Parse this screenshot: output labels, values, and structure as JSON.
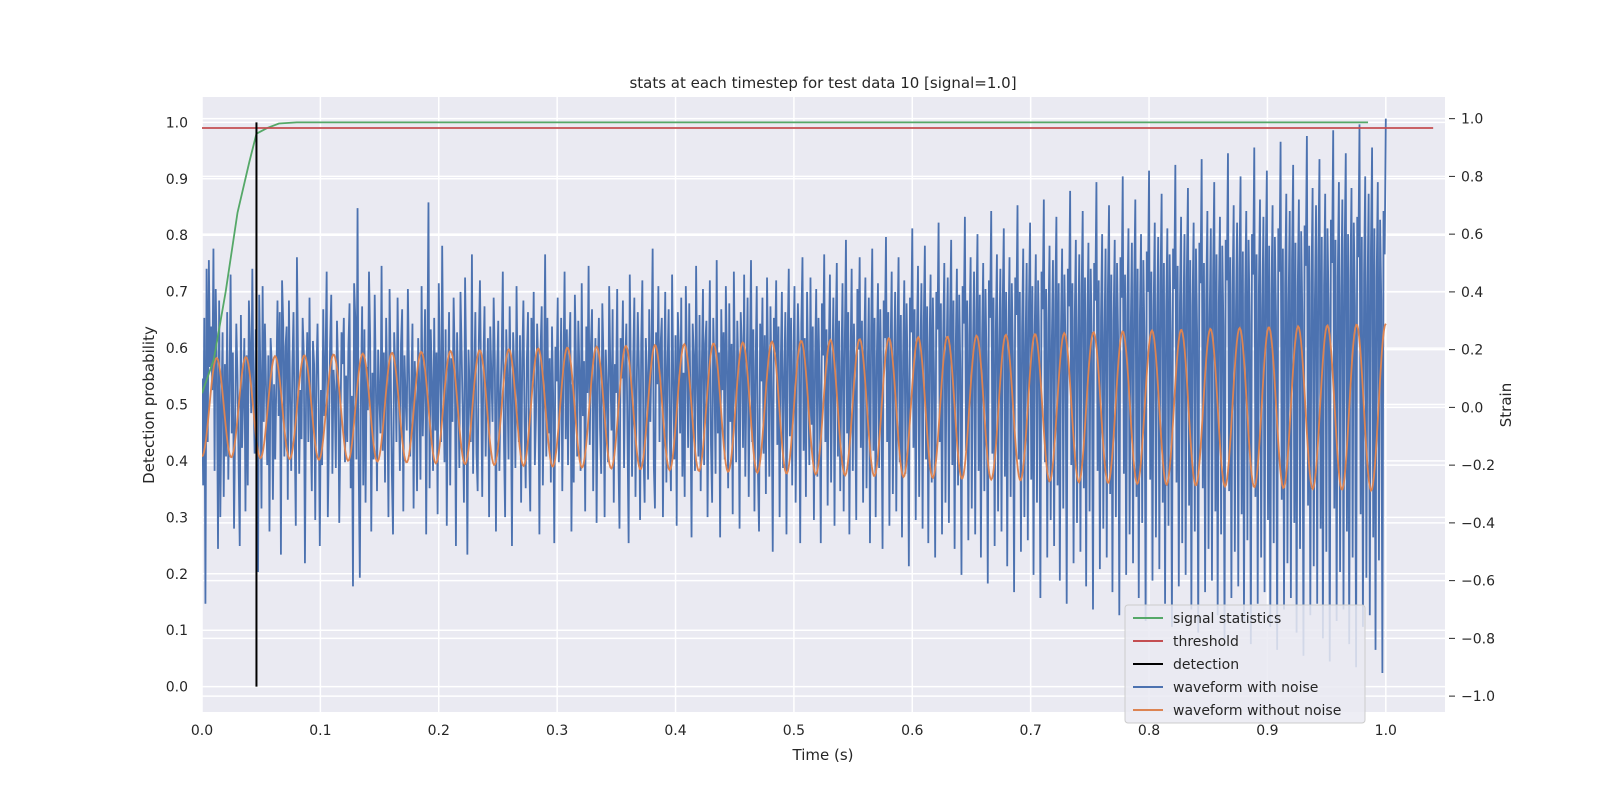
{
  "chart_data": {
    "type": "line",
    "title": "stats at each timestep for test data 10 [signal=1.0]",
    "xlabel": "Time (s)",
    "ylabel": "Detection probability",
    "y2label": "Strain",
    "xlim": [
      0.0,
      1.05
    ],
    "ylim": [
      -0.045,
      1.045
    ],
    "y2lim": [
      -1.055,
      1.075
    ],
    "xticks": [
      "0.0",
      "0.1",
      "0.2",
      "0.3",
      "0.4",
      "0.5",
      "0.6",
      "0.7",
      "0.8",
      "0.9",
      "1.0"
    ],
    "yticks": [
      "0.0",
      "0.1",
      "0.2",
      "0.3",
      "0.4",
      "0.5",
      "0.6",
      "0.7",
      "0.8",
      "0.9",
      "1.0"
    ],
    "y2ticks": [
      "−1.0",
      "−0.8",
      "−0.6",
      "−0.4",
      "−0.2",
      "0.0",
      "0.2",
      "0.4",
      "0.6",
      "0.8",
      "1.0"
    ],
    "grid": true,
    "legend_position": "lower-right",
    "series": [
      {
        "name": "signal statistics",
        "axis": "left",
        "color": "#55a868",
        "x": [
          0.0,
          0.01,
          0.02,
          0.03,
          0.04,
          0.046,
          0.055,
          0.065,
          0.08,
          0.1,
          0.2,
          0.5,
          0.985
        ],
        "y": [
          0.52,
          0.58,
          0.7,
          0.84,
          0.93,
          0.98,
          0.99,
          0.998,
          1.0,
          1.0,
          1.0,
          1.0,
          1.0
        ]
      },
      {
        "name": "threshold",
        "axis": "left",
        "color": "#c44e52",
        "x": [
          0.0,
          1.04
        ],
        "y": [
          0.99,
          0.99
        ]
      },
      {
        "name": "detection",
        "axis": "left",
        "color": "#000000",
        "x": [
          0.046,
          0.046
        ],
        "y": [
          0.0,
          1.0
        ]
      },
      {
        "name": "waveform with noise",
        "axis": "right",
        "color": "#4c72b0",
        "x_range": [
          0.0,
          1.0
        ],
        "y": [
          0.1,
          -0.27,
          0.31,
          -0.68,
          0.48,
          -0.12,
          0.51,
          0.14,
          0.28,
          0.06,
          0.55,
          -0.22,
          0.41,
          0.12,
          -0.49,
          0.37,
          -0.38,
          -0.01,
          0.26,
          -0.31,
          0.15,
          -0.17,
          0.33,
          -0.25,
          0.06,
          0.46,
          -0.09,
          0.19,
          -0.42,
          -0.05,
          0.29,
          0.11,
          -0.19,
          -0.48,
          0.32,
          -0.14,
          0.03,
          0.24,
          -0.36,
          0.18,
          -0.27,
          0.37,
          0.21,
          -0.02,
          0.48,
          0.06,
          -0.16,
          0.27,
          -0.28,
          -0.57,
          0.39,
          0.13,
          -0.35,
          0.42,
          -0.05,
          0.29,
          0.07,
          -0.2,
          0.18,
          -0.43,
          0.24,
          0.15,
          -0.32,
          0.08,
          -0.18,
          0.09,
          0.37,
          -0.03,
          0.33,
          -0.51,
          0.44,
          0.29,
          -0.17,
          0.21,
          0.28,
          -0.32,
          0.37,
          0.04,
          -0.22,
          0.14,
          0.33,
          -0.08,
          -0.41,
          0.52,
          0.16,
          -0.23,
          0.06,
          -0.11,
          0.31,
          0.18,
          -0.54,
          0.05,
          0.26,
          -0.12,
          0.38,
          -0.07,
          -0.29,
          0.23,
          0.15,
          -0.39,
          0.11,
          0.29,
          0.02,
          -0.48,
          0.06,
          -0.2,
          0.34,
          -0.03,
          0.17,
          0.47,
          -0.38,
          -0.11,
          0.22,
          0.39,
          -0.23,
          0.13,
          0.05,
          -0.21,
          0.3,
          0.14,
          -0.4,
          -0.08,
          0.26,
          0.15,
          0.31,
          -0.19,
          0.11,
          -0.12,
          0.21,
          0.36,
          -0.28,
          0.04,
          -0.62,
          0.43,
          0.31,
          -0.18,
          0.69,
          -0.21,
          -0.59,
          0.08,
          0.35,
          -0.27,
          0.27,
          -0.33,
          0.14,
          -0.01,
          0.47,
          0.24,
          -0.43,
          0.12,
          -0.18,
          0.39,
          0.08,
          -0.29,
          0.2,
          0.04,
          -0.09,
          0.49,
          -0.15,
          0.19,
          -0.26,
          0.31,
          0.07,
          -0.38,
          0.41,
          0.12,
          -0.23,
          -0.44,
          0.26,
          0.13,
          -0.12,
          0.38,
          0.07,
          -0.22,
          0.22,
          0.34,
          -0.36,
          0.18,
          0.03,
          -0.08,
          0.41,
          0.12,
          -0.17,
          0.06,
          0.29,
          -0.35,
          0.16,
          0.02,
          -0.29,
          0.24,
          0.07,
          -0.25,
          0.42,
          -0.1,
          0.09,
          0.34,
          -0.44,
          0.15,
          0.71,
          -0.28,
          0.27,
          0.09,
          -0.22,
          0.31,
          -0.08,
          0.19,
          -0.37,
          0.43,
          0.13,
          -0.12,
          0.56,
          0.11,
          -0.19,
          0.27,
          -0.41,
          0.06,
          0.33,
          -0.27,
          0.17,
          -0.05,
          0.38,
          0.16,
          -0.48,
          0.26,
          0.08,
          -0.21,
          0.4,
          0.19,
          -0.03,
          -0.33,
          0.45,
          0.14,
          -0.51,
          0.2,
          0.06,
          -0.12,
          0.53,
          -0.23,
          0.09,
          0.33,
          -0.16,
          -0.29,
          0.22,
          0.44,
          0.1,
          -0.31,
          0.15,
          0.35,
          -0.17,
          0.07,
          0.24,
          -0.38,
          0.28,
          0.11,
          -0.05,
          0.38,
          0.16,
          -0.43,
          0.11,
          0.3,
          -0.22,
          0.04,
          0.18,
          0.47,
          -0.12,
          -0.38,
          0.27,
          0.1,
          -0.18,
          0.35,
          0.05,
          -0.48,
          0.26,
          0.13,
          -0.21,
          0.42,
          0.07,
          -0.12,
          0.25,
          -0.33,
          0.17,
          0.37,
          -0.05,
          -0.28,
          0.16,
          0.33,
          -0.15,
          -0.36,
          0.31,
          0.09,
          0.4,
          -0.2,
          -0.03,
          0.29,
          0.14,
          -0.44,
          0.2,
          0.35,
          -0.27,
          0.08,
          0.53,
          -0.17,
          0.31,
          -0.09,
          0.17,
          -0.26,
          0.28,
          0.04,
          -0.47,
          0.21,
          0.09,
          0.38,
          -0.19,
          0.04,
          0.31,
          -0.29,
          0.13,
          0.47,
          -0.11,
          0.27,
          -0.2,
          0.19,
          0.33,
          -0.43,
          0.08,
          -0.26,
          0.39,
          0.16,
          -0.17,
          0.3,
          0.12,
          -0.22,
          0.43,
          -0.03,
          0.16,
          -0.36,
          0.28,
          0.05,
          0.49,
          -0.13,
          0.21,
          0.34,
          -0.29,
          0.09,
          0.24,
          -0.4,
          0.12,
          0.31,
          -0.07,
          -0.23,
          0.36,
          0.17,
          -0.38,
          0.2,
          0.06,
          -0.19,
          0.42,
          0.13,
          -0.08,
          0.34,
          -0.33,
          0.15,
          0.05,
          0.41,
          -0.15,
          -0.42,
          0.24,
          0.1,
          0.37,
          -0.21,
          0.14,
          0.29,
          -0.1,
          -0.47,
          0.46,
          0.09,
          -0.24,
          0.16,
          0.38,
          -0.31,
          0.05,
          0.33,
          0.13,
          -0.39,
          0.22,
          0.44,
          -0.16,
          -0.33,
          0.24,
          0.12,
          -0.25,
          0.34,
          -0.05,
          0.19,
          0.55,
          -0.2,
          -0.35,
          0.26,
          0.08,
          0.42,
          -0.12,
          0.22,
          0.31,
          -0.38,
          0.07,
          0.4,
          -0.26,
          0.14,
          0.34,
          -0.11,
          -0.29,
          0.46,
          0.1,
          -0.18,
          0.25,
          -0.41,
          0.33,
          0.2,
          -0.09,
          0.38,
          -0.24,
          0.12,
          -0.31,
          0.42,
          0.16,
          -0.14,
          0.36,
          0.04,
          -0.45,
          0.29,
          0.18,
          -0.22,
          0.49,
          0.08,
          -0.17,
          0.32,
          -0.29,
          0.14,
          0.41,
          -0.2,
          0.22,
          0.3,
          -0.38,
          0.09,
          0.44,
          -0.13,
          -0.33,
          0.31,
          0.12,
          -0.23,
          0.51,
          -0.09,
          0.19,
          -0.45,
          0.34,
          0.06,
          0.26,
          -0.18,
          0.42,
          0.15,
          -0.28,
          0.36,
          -0.05,
          0.22,
          -0.37,
          0.47,
          0.1,
          -0.19,
          0.3,
          0.12,
          -0.42,
          0.33,
          0.21,
          -0.14,
          0.46,
          -0.24,
          0.08,
          0.38,
          -0.31,
          0.16,
          0.51,
          -0.12,
          0.27,
          -0.36,
          0.14,
          0.42,
          -0.21,
          -0.43,
          0.29,
          0.09,
          0.38,
          -0.16,
          0.25,
          -0.3,
          0.45,
          0.12,
          -0.24,
          0.35,
          0.06,
          -0.5,
          0.31,
          0.19,
          0.44,
          -0.13,
          0.28,
          -0.38,
          0.15,
          0.4,
          -0.21,
          0.09,
          0.33,
          -0.44,
          0.22,
          0.48,
          -0.1,
          0.31,
          -0.27,
          0.14,
          0.42,
          -0.33,
          0.07,
          0.36,
          0.17,
          -0.47,
          0.29,
          0.52,
          -0.15,
          0.24,
          -0.31,
          0.4,
          0.11,
          -0.2,
          0.45,
          -0.06,
          0.28,
          -0.39,
          0.16,
          0.41,
          -0.24,
          0.31,
          0.08,
          -0.47,
          0.36,
          0.18,
          0.53,
          -0.12,
          0.27,
          -0.34,
          0.19,
          0.46,
          -0.26,
          0.1,
          0.38,
          -0.41,
          0.24,
          0.5,
          -0.17,
          0.3,
          -0.29,
          0.13,
          0.43,
          -0.36,
          0.22,
          0.58,
          -0.09,
          0.33,
          -0.44,
          0.16,
          0.48,
          -0.22,
          0.29,
          0.05,
          -0.39,
          0.41,
          0.2,
          0.52,
          -0.14,
          0.3,
          -0.33,
          0.21,
          0.45,
          -0.28,
          0.12,
          0.38,
          -0.47,
          0.26,
          0.55,
          -0.15,
          0.31,
          -0.38,
          0.17,
          0.43,
          -0.21,
          0.34,
          0.06,
          -0.49,
          0.37,
          0.24,
          0.59,
          -0.12,
          0.33,
          -0.41,
          0.2,
          0.47,
          -0.3,
          0.14,
          0.4,
          -0.36,
          0.25,
          0.52,
          -0.19,
          0.32,
          -0.45,
          0.18,
          0.44,
          -0.23,
          0.36,
          0.09,
          -0.55,
          0.38,
          0.26,
          0.62,
          -0.14,
          0.34,
          -0.39,
          0.22,
          0.49,
          -0.31,
          0.16,
          0.43,
          -0.42,
          0.28,
          0.56,
          -0.18,
          0.35,
          -0.47,
          0.2,
          0.46,
          -0.26,
          0.38,
          0.11,
          -0.52,
          0.4,
          0.27,
          0.64,
          -0.12,
          0.36,
          -0.44,
          0.23,
          0.5,
          -0.33,
          0.17,
          0.45,
          -0.4,
          0.3,
          0.58,
          -0.2,
          0.37,
          -0.49,
          0.21,
          0.48,
          -0.27,
          0.39,
          0.13,
          -0.58,
          0.42,
          0.29,
          0.66,
          -0.15,
          0.37,
          -0.46,
          0.25,
          0.52,
          -0.35,
          0.19,
          0.47,
          -0.44,
          0.32,
          0.6,
          -0.22,
          0.39,
          -0.52,
          0.23,
          0.5,
          -0.29,
          0.41,
          0.14,
          -0.61,
          0.44,
          0.31,
          0.68,
          -0.16,
          0.38,
          -0.48,
          0.26,
          0.53,
          -0.36,
          0.2,
          0.48,
          -0.43,
          0.34,
          0.62,
          -0.24,
          0.4,
          -0.55,
          0.24,
          0.52,
          -0.31,
          0.43,
          0.16,
          -0.64,
          0.45,
          0.32,
          0.7,
          -0.18,
          0.4,
          -0.5,
          0.27,
          0.55,
          -0.38,
          0.21,
          0.5,
          -0.46,
          0.36,
          0.64,
          -0.25,
          0.42,
          -0.58,
          0.26,
          0.53,
          -0.33,
          0.44,
          0.17,
          -0.66,
          0.47,
          0.34,
          0.72,
          -0.19,
          0.41,
          -0.52,
          0.29,
          0.56,
          -0.39,
          0.23,
          0.51,
          -0.48,
          0.37,
          0.66,
          -0.27,
          0.43,
          -0.6,
          0.27,
          0.55,
          -0.35,
          0.46,
          0.19,
          -0.68,
          0.48,
          0.35,
          0.75,
          -0.2,
          0.43,
          -0.54,
          0.3,
          0.58,
          -0.4,
          0.24,
          0.53,
          -0.5,
          0.39,
          0.68,
          -0.28,
          0.45,
          -0.62,
          0.29,
          0.57,
          -0.36,
          0.48,
          0.2,
          -0.7,
          0.5,
          0.37,
          0.78,
          -0.22,
          0.44,
          -0.56,
          0.31,
          0.6,
          -0.42,
          0.25,
          0.55,
          -0.52,
          0.4,
          0.7,
          -0.3,
          0.46,
          -0.64,
          0.3,
          0.58,
          -0.38,
          0.5,
          0.22,
          -0.72,
          0.52,
          0.38,
          0.8,
          -0.23,
          0.46,
          -0.58,
          0.33,
          0.62,
          -0.44,
          0.27,
          0.57,
          -0.54,
          0.42,
          0.72,
          -0.31,
          0.48,
          -0.66,
          0.32,
          0.6,
          -0.4,
          0.51,
          0.23,
          -0.74,
          0.54,
          0.4,
          0.82,
          -0.25,
          0.47,
          -0.6,
          0.34,
          0.64,
          -0.45,
          0.28,
          0.59,
          -0.56,
          0.43,
          0.74,
          -0.33,
          0.5,
          -0.68,
          0.33,
          0.62,
          -0.41,
          0.53,
          0.25,
          -0.76,
          0.55,
          0.41,
          0.84,
          -0.26,
          0.49,
          -0.62,
          0.36,
          0.66,
          -0.47,
          0.3,
          0.6,
          -0.58,
          0.45,
          0.76,
          -0.34,
          0.51,
          -0.7,
          0.35,
          0.64,
          -0.43,
          0.55,
          0.26,
          -0.78,
          0.57,
          0.43,
          0.86,
          -0.28,
          0.5,
          -0.64,
          0.37,
          0.68,
          -0.49,
          0.31,
          0.62,
          -0.6,
          0.46,
          0.78,
          -0.36,
          0.53,
          -0.72,
          0.36,
          0.66,
          -0.44,
          0.56,
          0.28,
          -0.8,
          0.58,
          0.44,
          0.88,
          -0.29,
          0.52,
          -0.66,
          0.39,
          0.7,
          -0.5,
          0.33,
          0.64,
          -0.62,
          0.48,
          0.8,
          -0.37,
          0.54,
          -0.74,
          0.38,
          0.68,
          -0.46,
          0.58,
          0.29,
          -0.82,
          0.6,
          0.46,
          0.9,
          -0.31,
          0.53,
          -0.68,
          0.4,
          0.72,
          -0.52,
          0.34,
          0.66,
          -0.64,
          0.49,
          0.82,
          -0.39,
          0.56,
          -0.76,
          0.39,
          0.7,
          -0.47,
          0.59,
          0.31,
          -0.84,
          0.62,
          0.47,
          0.92,
          -0.32,
          0.55,
          -0.7,
          0.42,
          0.74,
          -0.54,
          0.36,
          0.68,
          -0.66,
          0.51,
          0.84,
          -0.4,
          0.57,
          -0.78,
          0.41,
          0.72,
          -0.49,
          0.61,
          0.32,
          -0.86,
          0.63,
          0.49,
          0.94,
          -0.34,
          0.56,
          -0.72,
          0.43,
          0.76,
          -0.55,
          0.37,
          0.7,
          -0.68,
          0.52,
          0.86,
          -0.42,
          0.59,
          -0.8,
          0.42,
          0.74,
          -0.5,
          0.62,
          0.34,
          -0.88,
          0.65,
          0.5,
          0.96,
          -0.35,
          0.58,
          -0.74,
          0.45,
          0.78,
          -0.57,
          0.39,
          0.72,
          -0.7,
          0.54,
          0.88,
          -0.43,
          0.6,
          -0.82,
          0.44,
          0.76,
          -0.52,
          0.64,
          0.35,
          -0.9,
          0.66,
          0.52,
          0.98,
          -0.37,
          0.59,
          -0.76,
          0.46,
          0.8,
          -0.59,
          0.4,
          0.74,
          -0.72,
          0.55,
          0.9,
          -0.45,
          0.62,
          -0.84,
          0.45,
          0.78,
          -0.53,
          0.65,
          0.37,
          -0.92,
          0.68,
          0.53,
          1.0
        ]
      },
      {
        "name": "waveform without noise",
        "axis": "right",
        "color": "#dd8452",
        "x_range": [
          0.0,
          1.0
        ],
        "cycles": 40.5,
        "amp_start": 0.17,
        "amp_end": 0.29
      }
    ]
  }
}
